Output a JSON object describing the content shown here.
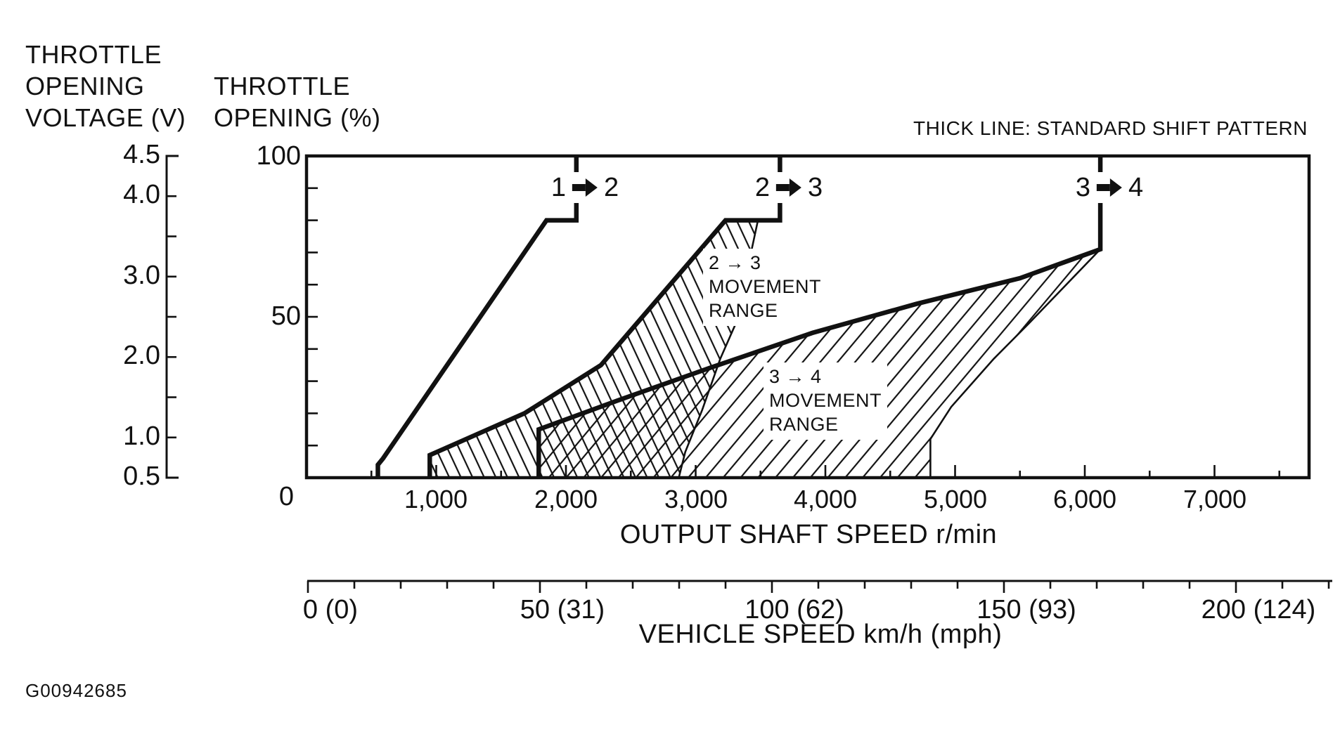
{
  "titles": {
    "voltage_axis": [
      "THROTTLE",
      "OPENING",
      "VOLTAGE (V)"
    ],
    "percent_axis": [
      "THROTTLE",
      "OPENING (%)"
    ],
    "legend_note": "THICK LINE: STANDARD SHIFT PATTERN",
    "x_axis": "OUTPUT SHAFT SPEED r/min",
    "vehicle_axis": "VEHICLE SPEED km/h (mph)",
    "figure_id": "G00942685"
  },
  "shift_labels": [
    {
      "from": "1",
      "to": "2"
    },
    {
      "from": "2",
      "to": "3"
    },
    {
      "from": "3",
      "to": "4"
    }
  ],
  "region_labels": [
    {
      "lines": [
        "2 → 3",
        "MOVEMENT",
        "RANGE"
      ]
    },
    {
      "lines": [
        "3 → 4",
        "MOVEMENT",
        "RANGE"
      ]
    }
  ],
  "voltage_tick_labels": [
    "4.5",
    "4.0",
    "3.0",
    "2.0",
    "1.0",
    "0.5"
  ],
  "percent_tick_labels": [
    "100",
    "50",
    "0"
  ],
  "x_tick_labels": [
    "1,000",
    "2,000",
    "3,000",
    "4,000",
    "5,000",
    "6,000",
    "7,000"
  ],
  "vehicle_tick_labels": [
    "0 (0)",
    "50 (31)",
    "100 (62)",
    "150 (93)",
    "200 (124)"
  ],
  "chart_data": {
    "type": "line",
    "xlabel": "OUTPUT SHAFT SPEED r/min",
    "x2label": "VEHICLE SPEED km/h (mph)",
    "ylabel_percent": "THROTTLE OPENING (%)",
    "ylabel_voltage": "THROTTLE OPENING VOLTAGE (V)",
    "legend_note": "THICK LINE: STANDARD SHIFT PATTERN",
    "xlim": [
      0,
      7730
    ],
    "ylim_percent": [
      0,
      100
    ],
    "ylim_voltage": [
      0.5,
      4.5
    ],
    "x_axis": {
      "tick_values": [
        0,
        500,
        1000,
        1500,
        2000,
        2500,
        3000,
        3500,
        4000,
        4500,
        5000,
        5500,
        6000,
        6500,
        7000,
        7500
      ],
      "major_every": 1000,
      "labeled_ticks": [
        1000,
        2000,
        3000,
        4000,
        5000,
        6000,
        7000
      ]
    },
    "percent_axis": {
      "minor_ticks": [
        10,
        20,
        30,
        40,
        50,
        60,
        70,
        80,
        90
      ],
      "labeled_ticks": [
        100,
        50,
        0
      ]
    },
    "voltage_axis": {
      "tick_values": [
        1.0,
        1.5,
        2.0,
        2.5,
        3.0,
        3.5,
        4.0
      ],
      "labeled_ticks": [
        4.5,
        4.0,
        3.0,
        2.0,
        1.0,
        0.5
      ]
    },
    "vehicle_axis": {
      "tick_step": 10,
      "max": 220,
      "labeled_ticks": [
        0,
        50,
        100,
        150,
        200
      ]
    },
    "series": [
      {
        "name": "shift-1-2-standard",
        "thick": true,
        "points": [
          [
            2080,
            100
          ],
          [
            2080,
            80
          ],
          [
            1850,
            80
          ],
          [
            590,
            6
          ],
          [
            550,
            4
          ],
          [
            550,
            0
          ]
        ]
      },
      {
        "name": "shift-2-3-standard",
        "thick": true,
        "points": [
          [
            3650,
            100
          ],
          [
            3650,
            80
          ],
          [
            3230,
            80
          ],
          [
            2270,
            35
          ],
          [
            1680,
            20
          ],
          [
            950,
            7
          ],
          [
            950,
            0
          ]
        ]
      },
      {
        "name": "shift-3-4-standard",
        "thick": true,
        "points": [
          [
            6120,
            100
          ],
          [
            6120,
            71
          ],
          [
            5500,
            62
          ],
          [
            4700,
            54
          ],
          [
            3900,
            45
          ],
          [
            3100,
            34
          ],
          [
            2400,
            24
          ],
          [
            1790,
            15
          ],
          [
            1790,
            0
          ]
        ]
      },
      {
        "name": "shift-2-3-range-boundary",
        "thick": false,
        "points": [
          [
            3480,
            80
          ],
          [
            3310,
            48
          ],
          [
            3190,
            37
          ],
          [
            3050,
            21
          ],
          [
            2920,
            8
          ],
          [
            2870,
            0
          ]
        ]
      },
      {
        "name": "shift-3-4-range-boundary",
        "thick": false,
        "points": [
          [
            6120,
            71
          ],
          [
            5570,
            48
          ],
          [
            5300,
            37
          ],
          [
            4970,
            22
          ],
          [
            4810,
            12
          ],
          [
            4810,
            0
          ]
        ]
      }
    ],
    "regions": [
      {
        "name": "shift-2-3-movement-range",
        "hatch": "hatch-backslash",
        "points": [
          [
            3230,
            80
          ],
          [
            3480,
            80
          ],
          [
            3310,
            48
          ],
          [
            3190,
            37
          ],
          [
            3050,
            21
          ],
          [
            2920,
            8
          ],
          [
            2870,
            0
          ],
          [
            950,
            0
          ],
          [
            950,
            7
          ],
          [
            1680,
            20
          ],
          [
            2270,
            35
          ]
        ]
      },
      {
        "name": "shift-3-4-movement-range",
        "hatch": "hatch-slash",
        "points": [
          [
            6120,
            71
          ],
          [
            5570,
            48
          ],
          [
            5300,
            37
          ],
          [
            4970,
            22
          ],
          [
            4810,
            12
          ],
          [
            4810,
            0
          ],
          [
            1790,
            0
          ],
          [
            1790,
            15
          ],
          [
            2400,
            24
          ],
          [
            3100,
            34
          ],
          [
            3900,
            45
          ],
          [
            4700,
            54
          ],
          [
            5500,
            62
          ]
        ]
      }
    ]
  }
}
